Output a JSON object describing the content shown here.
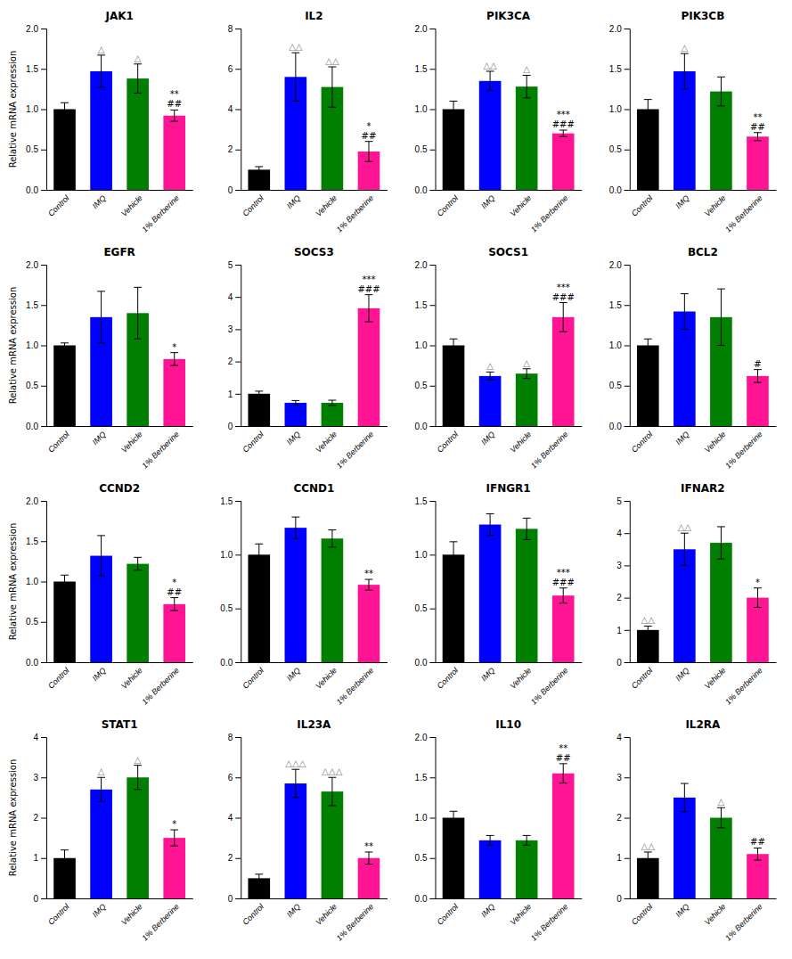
{
  "chart_data": [
    {
      "type": "bar",
      "title": "JAK1",
      "ylabel": "Relative mRNA expression",
      "categories": [
        "Control",
        "IMQ",
        "Vehicle",
        "1% Berberine"
      ],
      "values": [
        1.0,
        1.47,
        1.38,
        0.92
      ],
      "errors": [
        0.08,
        0.2,
        0.18,
        0.07
      ],
      "colors": [
        "#000000",
        "#0000ff",
        "#008000",
        "#ff1493"
      ],
      "ylim": [
        0,
        2.0
      ],
      "yticks": [
        {
          "value": 0.0,
          "label": "0.0"
        },
        0.5,
        {
          "value": 1.0,
          "label": "1.0"
        },
        1.5,
        {
          "value": 2.0,
          "label": "2.0"
        }
      ],
      "annotations": [
        {
          "bar": 1,
          "text": "△",
          "color": "gray"
        },
        {
          "bar": 2,
          "text": "△",
          "color": "gray"
        },
        {
          "bar": 3,
          "text": "**",
          "color": "black"
        },
        {
          "bar": 3,
          "text": "##",
          "color": "black",
          "below": true
        }
      ]
    },
    {
      "type": "bar",
      "title": "IL2",
      "categories": [
        "Control",
        "IMQ",
        "Vehicle",
        "1% Berberine"
      ],
      "values": [
        1.0,
        5.6,
        5.1,
        1.9
      ],
      "errors": [
        0.15,
        1.2,
        1.0,
        0.5
      ],
      "colors": [
        "#000000",
        "#0000ff",
        "#008000",
        "#ff1493"
      ],
      "ylim": [
        0,
        8
      ],
      "yticks": [
        0,
        2,
        4,
        6,
        8
      ],
      "annotations": [
        {
          "bar": 1,
          "text": "△△",
          "color": "gray"
        },
        {
          "bar": 2,
          "text": "△△",
          "color": "gray"
        },
        {
          "bar": 3,
          "text": "*",
          "color": "black"
        },
        {
          "bar": 3,
          "text": "##",
          "color": "black",
          "below": true
        }
      ]
    },
    {
      "type": "bar",
      "title": "PIK3CA",
      "categories": [
        "Control",
        "IMQ",
        "Vehicle",
        "1% Berberine"
      ],
      "values": [
        1.0,
        1.35,
        1.28,
        0.7
      ],
      "errors": [
        0.1,
        0.12,
        0.14,
        0.04
      ],
      "colors": [
        "#000000",
        "#0000ff",
        "#008000",
        "#ff1493"
      ],
      "ylim": [
        0,
        2.0
      ],
      "yticks": [
        {
          "value": 0.0,
          "label": "0.0"
        },
        0.5,
        {
          "value": 1.0,
          "label": "1.0"
        },
        1.5,
        {
          "value": 2.0,
          "label": "2.0"
        }
      ],
      "annotations": [
        {
          "bar": 1,
          "text": "△△",
          "color": "gray"
        },
        {
          "bar": 2,
          "text": "△",
          "color": "gray"
        },
        {
          "bar": 3,
          "text": "***",
          "color": "black"
        },
        {
          "bar": 3,
          "text": "###",
          "color": "black",
          "below": true
        }
      ]
    },
    {
      "type": "bar",
      "title": "PIK3CB",
      "categories": [
        "Control",
        "IMQ",
        "Vehicle",
        "1% Berberine"
      ],
      "values": [
        1.0,
        1.47,
        1.22,
        0.66
      ],
      "errors": [
        0.12,
        0.22,
        0.18,
        0.05
      ],
      "colors": [
        "#000000",
        "#0000ff",
        "#008000",
        "#ff1493"
      ],
      "ylim": [
        0,
        2.0
      ],
      "yticks": [
        {
          "value": 0.0,
          "label": "0.0"
        },
        0.5,
        {
          "value": 1.0,
          "label": "1.0"
        },
        1.5,
        {
          "value": 2.0,
          "label": "2.0"
        }
      ],
      "annotations": [
        {
          "bar": 1,
          "text": "△",
          "color": "gray"
        },
        {
          "bar": 3,
          "text": "**",
          "color": "black"
        },
        {
          "bar": 3,
          "text": "##",
          "color": "black",
          "below": true
        }
      ]
    },
    {
      "type": "bar",
      "title": "EGFR",
      "ylabel": "Relative mRNA expression",
      "categories": [
        "Control",
        "IMQ",
        "Vehicle",
        "1% Berberine"
      ],
      "values": [
        1.0,
        1.35,
        1.4,
        0.83
      ],
      "errors": [
        0.03,
        0.32,
        0.32,
        0.08
      ],
      "colors": [
        "#000000",
        "#0000ff",
        "#008000",
        "#ff1493"
      ],
      "ylim": [
        0,
        2.0
      ],
      "yticks": [
        {
          "value": 0.0,
          "label": "0.0"
        },
        0.5,
        {
          "value": 1.0,
          "label": "1.0"
        },
        1.5,
        {
          "value": 2.0,
          "label": "2.0"
        }
      ],
      "annotations": [
        {
          "bar": 3,
          "text": "*",
          "color": "black"
        }
      ]
    },
    {
      "type": "bar",
      "title": "SOCS3",
      "categories": [
        "Control",
        "IMQ",
        "Vehicle",
        "1% Berberine"
      ],
      "values": [
        1.0,
        0.72,
        0.72,
        3.65
      ],
      "errors": [
        0.08,
        0.07,
        0.08,
        0.42
      ],
      "colors": [
        "#000000",
        "#0000ff",
        "#008000",
        "#ff1493"
      ],
      "ylim": [
        0,
        5
      ],
      "yticks": [
        0,
        1,
        2,
        3,
        4,
        5
      ],
      "annotations": [
        {
          "bar": 3,
          "text": "***",
          "color": "black"
        },
        {
          "bar": 3,
          "text": "###",
          "color": "black",
          "below": true
        }
      ]
    },
    {
      "type": "bar",
      "title": "SOCS1",
      "categories": [
        "Control",
        "IMQ",
        "Vehicle",
        "1% Berberine"
      ],
      "values": [
        1.0,
        0.62,
        0.65,
        1.35
      ],
      "errors": [
        0.08,
        0.05,
        0.06,
        0.18
      ],
      "colors": [
        "#000000",
        "#0000ff",
        "#008000",
        "#ff1493"
      ],
      "ylim": [
        0,
        2.0
      ],
      "yticks": [
        {
          "value": 0.0,
          "label": "0.0"
        },
        0.5,
        {
          "value": 1.0,
          "label": "1.0"
        },
        1.5,
        {
          "value": 2.0,
          "label": "2.0"
        }
      ],
      "annotations": [
        {
          "bar": 1,
          "text": "△",
          "color": "gray"
        },
        {
          "bar": 2,
          "text": "△",
          "color": "gray"
        },
        {
          "bar": 3,
          "text": "***",
          "color": "black"
        },
        {
          "bar": 3,
          "text": "###",
          "color": "black",
          "below": true
        }
      ]
    },
    {
      "type": "bar",
      "title": "BCL2",
      "categories": [
        "Control",
        "IMQ",
        "Vehicle",
        "1% Berberine"
      ],
      "values": [
        1.0,
        1.42,
        1.35,
        0.62
      ],
      "errors": [
        0.08,
        0.22,
        0.35,
        0.08
      ],
      "colors": [
        "#000000",
        "#0000ff",
        "#008000",
        "#ff1493"
      ],
      "ylim": [
        0,
        2.0
      ],
      "yticks": [
        {
          "value": 0.0,
          "label": "0.0"
        },
        0.5,
        {
          "value": 1.0,
          "label": "1.0"
        },
        1.5,
        {
          "value": 2.0,
          "label": "2.0"
        }
      ],
      "annotations": [
        {
          "bar": 3,
          "text": "#",
          "color": "black"
        }
      ]
    },
    {
      "type": "bar",
      "title": "CCND2",
      "ylabel": "Relative mRNA expression",
      "categories": [
        "Control",
        "IMQ",
        "Vehicle",
        "1% Berberine"
      ],
      "values": [
        1.0,
        1.32,
        1.22,
        0.72
      ],
      "errors": [
        0.08,
        0.25,
        0.08,
        0.08
      ],
      "colors": [
        "#000000",
        "#0000ff",
        "#008000",
        "#ff1493"
      ],
      "ylim": [
        0,
        2.0
      ],
      "yticks": [
        {
          "value": 0.0,
          "label": "0.0"
        },
        0.5,
        {
          "value": 1.0,
          "label": "1.0"
        },
        1.5,
        {
          "value": 2.0,
          "label": "2.0"
        }
      ],
      "annotations": [
        {
          "bar": 3,
          "text": "*",
          "color": "black"
        },
        {
          "bar": 3,
          "text": "##",
          "color": "black",
          "below": true
        }
      ]
    },
    {
      "type": "bar",
      "title": "CCND1",
      "categories": [
        "Control",
        "IMQ",
        "Vehicle",
        "1% Berberine"
      ],
      "values": [
        1.0,
        1.25,
        1.15,
        0.72
      ],
      "errors": [
        0.1,
        0.1,
        0.08,
        0.05
      ],
      "colors": [
        "#000000",
        "#0000ff",
        "#008000",
        "#ff1493"
      ],
      "ylim": [
        0,
        1.5
      ],
      "yticks": [
        {
          "value": 0.0,
          "label": "0.0"
        },
        0.5,
        {
          "value": 1.0,
          "label": "1.0"
        },
        1.5
      ],
      "annotations": [
        {
          "bar": 3,
          "text": "**",
          "color": "black"
        }
      ]
    },
    {
      "type": "bar",
      "title": "IFNGR1",
      "categories": [
        "Control",
        "IMQ",
        "Vehicle",
        "1% Berberine"
      ],
      "values": [
        1.0,
        1.28,
        1.24,
        0.62
      ],
      "errors": [
        0.12,
        0.1,
        0.1,
        0.07
      ],
      "colors": [
        "#000000",
        "#0000ff",
        "#008000",
        "#ff1493"
      ],
      "ylim": [
        0,
        1.5
      ],
      "yticks": [
        {
          "value": 0.0,
          "label": "0.0"
        },
        0.5,
        {
          "value": 1.0,
          "label": "1.0"
        },
        1.5
      ],
      "annotations": [
        {
          "bar": 3,
          "text": "***",
          "color": "black"
        },
        {
          "bar": 3,
          "text": "###",
          "color": "black",
          "below": true
        }
      ]
    },
    {
      "type": "bar",
      "title": "IFNAR2",
      "categories": [
        "Control",
        "IMQ",
        "Vehicle",
        "1% Berberine"
      ],
      "values": [
        1.0,
        3.5,
        3.7,
        2.0
      ],
      "errors": [
        0.12,
        0.5,
        0.5,
        0.3
      ],
      "colors": [
        "#000000",
        "#0000ff",
        "#008000",
        "#ff1493"
      ],
      "ylim": [
        0,
        5
      ],
      "yticks": [
        0,
        1,
        2,
        3,
        4,
        5
      ],
      "annotations": [
        {
          "bar": 0,
          "text": "△△",
          "color": "gray"
        },
        {
          "bar": 1,
          "text": "△△",
          "color": "gray"
        },
        {
          "bar": 3,
          "text": "*",
          "color": "black"
        }
      ]
    },
    {
      "type": "bar",
      "title": "STAT1",
      "ylabel": "Relative mRNA expression",
      "categories": [
        "Control",
        "IMQ",
        "Vehicle",
        "1% Berberine"
      ],
      "values": [
        1.0,
        2.7,
        3.0,
        1.5
      ],
      "errors": [
        0.2,
        0.3,
        0.3,
        0.2
      ],
      "colors": [
        "#000000",
        "#0000ff",
        "#008000",
        "#ff1493"
      ],
      "ylim": [
        0,
        4
      ],
      "yticks": [
        0,
        1,
        2,
        3,
        4
      ],
      "annotations": [
        {
          "bar": 1,
          "text": "△",
          "color": "gray"
        },
        {
          "bar": 2,
          "text": "△",
          "color": "gray"
        },
        {
          "bar": 3,
          "text": "*",
          "color": "black"
        }
      ]
    },
    {
      "type": "bar",
      "title": "IL23A",
      "categories": [
        "Control",
        "IMQ",
        "Vehicle",
        "1% Berberine"
      ],
      "values": [
        1.0,
        5.7,
        5.3,
        2.0
      ],
      "errors": [
        0.2,
        0.7,
        0.7,
        0.3
      ],
      "colors": [
        "#000000",
        "#0000ff",
        "#008000",
        "#ff1493"
      ],
      "ylim": [
        0,
        8
      ],
      "yticks": [
        0,
        2,
        4,
        6,
        8
      ],
      "annotations": [
        {
          "bar": 1,
          "text": "△△△",
          "color": "gray"
        },
        {
          "bar": 2,
          "text": "△△△",
          "color": "gray"
        },
        {
          "bar": 3,
          "text": "**",
          "color": "black"
        }
      ]
    },
    {
      "type": "bar",
      "title": "IL10",
      "categories": [
        "Control",
        "IMQ",
        "Vehicle",
        "1% Berberine"
      ],
      "values": [
        1.0,
        0.72,
        0.72,
        1.55
      ],
      "errors": [
        0.08,
        0.06,
        0.06,
        0.12
      ],
      "colors": [
        "#000000",
        "#0000ff",
        "#008000",
        "#ff1493"
      ],
      "ylim": [
        0,
        2.0
      ],
      "yticks": [
        {
          "value": 0.0,
          "label": "0.0"
        },
        0.5,
        {
          "value": 1.0,
          "label": "1.0"
        },
        1.5,
        {
          "value": 2.0,
          "label": "2.0"
        }
      ],
      "annotations": [
        {
          "bar": 3,
          "text": "**",
          "color": "black"
        },
        {
          "bar": 3,
          "text": "##",
          "color": "black",
          "below": true
        }
      ]
    },
    {
      "type": "bar",
      "title": "IL2RA",
      "categories": [
        "Control",
        "IMQ",
        "Vehicle",
        "1% Berberine"
      ],
      "values": [
        1.0,
        2.5,
        2.0,
        1.1
      ],
      "errors": [
        0.15,
        0.35,
        0.25,
        0.15
      ],
      "colors": [
        "#000000",
        "#0000ff",
        "#008000",
        "#ff1493"
      ],
      "ylim": [
        0,
        4
      ],
      "yticks": [
        0,
        1,
        2,
        3,
        4
      ],
      "annotations": [
        {
          "bar": 0,
          "text": "△△",
          "color": "gray"
        },
        {
          "bar": 2,
          "text": "△",
          "color": "gray"
        },
        {
          "bar": 3,
          "text": "##",
          "color": "black"
        }
      ]
    }
  ]
}
